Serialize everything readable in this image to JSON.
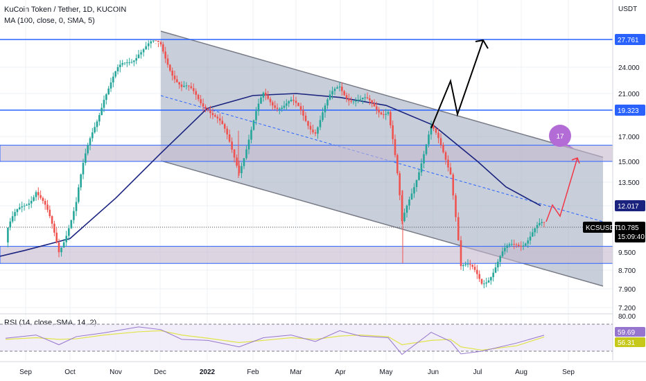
{
  "header": {
    "title": "KuCoin Token / Tether, 1D, KUCOIN",
    "indicator": "MA (100, close, 0, SMA, 5)",
    "rsi_label": "RSI (14, close, SMA, 14, 2)"
  },
  "colors": {
    "up": "#26a69a",
    "down": "#ef5350",
    "level_line": "#2962ff",
    "ma": "#1a237e",
    "channel_fill": "#9aa7bd",
    "zone_fill": "#c6b7cf",
    "rsi": "#9575cd",
    "rsi_ma": "#e1e34b",
    "arrow_black": "#000000",
    "arrow_red": "#f23645",
    "badge": "#b36bd6"
  },
  "chart_data": {
    "type": "candlestick",
    "title": "KuCoin Token / Tether, 1D, KUCOIN",
    "symbol": "KCSUSDT",
    "price_axis_unit": "USDT",
    "price_ticks": [
      27.761,
      24.0,
      21.0,
      19.323,
      17.0,
      15.0,
      13.5,
      12.017,
      10.785,
      9.5,
      8.7,
      7.9,
      7.2
    ],
    "x_ticks": [
      "Sep",
      "Oct",
      "Nov",
      "Dec",
      "2022",
      "Feb",
      "Mar",
      "Apr",
      "May",
      "Jun",
      "Jul",
      "Aug",
      "Sep"
    ],
    "last_price": 10.785,
    "countdown": "15:09:40",
    "horizontal_levels": [
      27.761,
      19.323,
      12.017
    ],
    "zones": [
      [
        15.0,
        16.3
      ],
      [
        9.0,
        9.8
      ]
    ],
    "ma_label_value": 12.017,
    "badge_text": "17",
    "price_series": [
      {
        "d": "Sep",
        "c": 10.4
      },
      {
        "d": "mid-Sep",
        "c": 13.2
      },
      {
        "d": "Oct",
        "c": 9.6
      },
      {
        "d": "mid-Oct",
        "c": 12.2
      },
      {
        "d": "Nov",
        "c": 21.0
      },
      {
        "d": "mid-Nov",
        "c": 26.5
      },
      {
        "d": "Dec",
        "c": 26.8
      },
      {
        "d": "mid-Dec",
        "c": 21.5
      },
      {
        "d": "2022",
        "c": 20.0
      },
      {
        "d": "Feb",
        "c": 14.6
      },
      {
        "d": "mid-Feb",
        "c": 20.5
      },
      {
        "d": "Mar",
        "c": 19.8
      },
      {
        "d": "mid-Mar",
        "c": 17.8
      },
      {
        "d": "Apr",
        "c": 21.8
      },
      {
        "d": "mid-Apr",
        "c": 20.0
      },
      {
        "d": "May",
        "c": 19.5
      },
      {
        "d": "mid-May",
        "c": 10.8
      },
      {
        "d": "Jun",
        "c": 17.5
      },
      {
        "d": "mid-Jun",
        "c": 14.5
      },
      {
        "d": "Jul",
        "c": 9.0
      },
      {
        "d": "mid-Jul",
        "c": 8.2
      },
      {
        "d": "Aug",
        "c": 10.0
      },
      {
        "d": "mid-Aug",
        "c": 10.785
      }
    ],
    "ma_series": [
      {
        "d": "Sep",
        "v": 9.6
      },
      {
        "d": "Oct",
        "v": 10.2
      },
      {
        "d": "Nov",
        "v": 12.5
      },
      {
        "d": "Dec",
        "v": 15.6
      },
      {
        "d": "2022",
        "v": 19.5
      },
      {
        "d": "Feb",
        "v": 20.8
      },
      {
        "d": "Mar",
        "v": 21.0
      },
      {
        "d": "Apr",
        "v": 20.6
      },
      {
        "d": "May",
        "v": 19.8
      },
      {
        "d": "Jun",
        "v": 18.0
      },
      {
        "d": "Jul",
        "v": 15.0
      },
      {
        "d": "mid-Jul",
        "v": 13.2
      },
      {
        "d": "Aug",
        "v": 12.017
      }
    ],
    "rsi": {
      "ticks": [
        80.0,
        59.69,
        56.31
      ],
      "values": [
        54,
        60,
        42,
        57,
        64,
        75,
        70,
        52,
        50,
        38,
        55,
        60,
        48,
        68,
        58,
        55,
        24,
        65,
        48,
        25,
        30,
        45,
        59.69
      ],
      "ma_values": [
        52,
        55,
        52,
        53,
        60,
        66,
        68,
        60,
        54,
        46,
        50,
        55,
        52,
        58,
        60,
        57,
        42,
        50,
        52,
        38,
        32,
        40,
        56.31
      ]
    }
  }
}
